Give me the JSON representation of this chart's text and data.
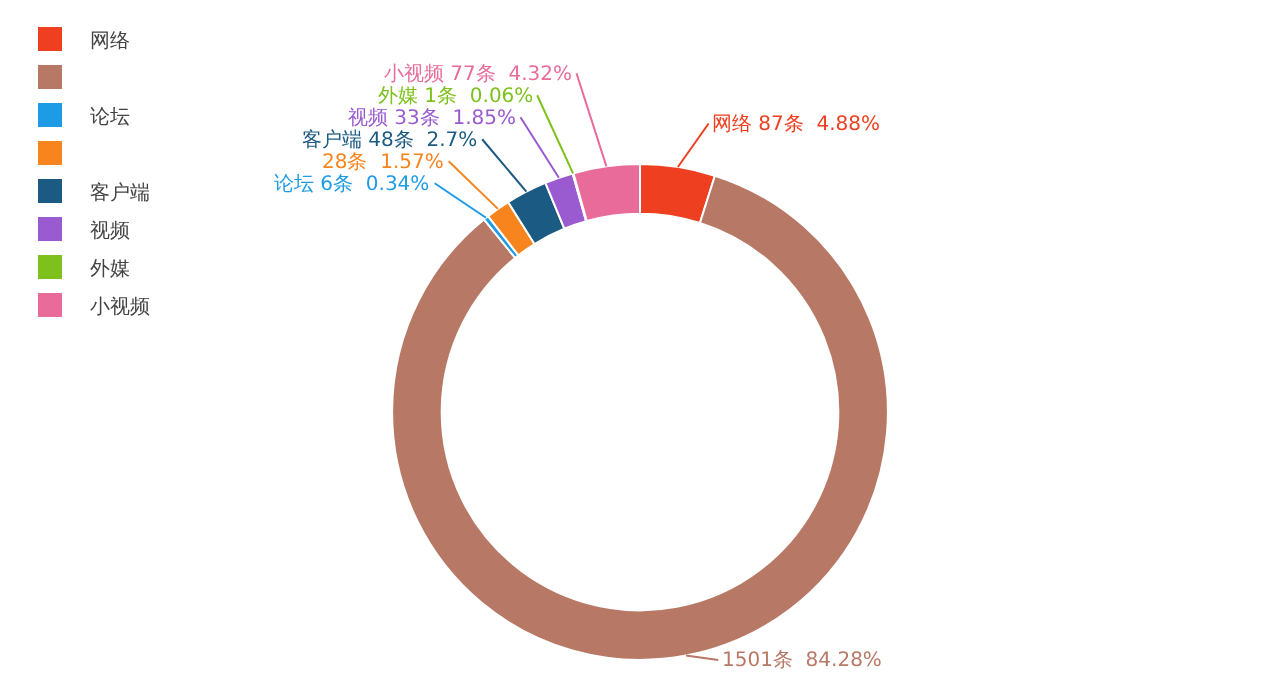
{
  "chart_data": {
    "type": "donut",
    "categories": [
      "网络",
      null,
      "论坛",
      null,
      "客户端",
      "视频",
      "外媒",
      "小视频"
    ],
    "values": [
      87,
      1501,
      6,
      28,
      48,
      33,
      1,
      77
    ],
    "colors": [
      "#ee4020",
      "#b87866",
      "#1e9be5",
      "#f7841d",
      "#1b5a82",
      "#9a5ad0",
      "#7ec11c",
      "#e96b9a"
    ],
    "value_labels": [
      "网络 87条  4.88%",
      "1501条  84.28%",
      "论坛 6条  0.34%",
      "28条  1.57%",
      "客户端 48条  2.7%",
      "视频 33条  1.85%",
      "外媒 1条  0.06%",
      "小视频 77条  4.32%"
    ],
    "legend": "top left"
  }
}
